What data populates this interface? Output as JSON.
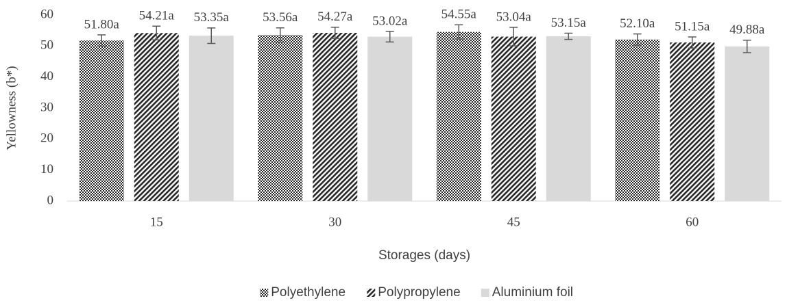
{
  "chart_data": {
    "type": "bar",
    "x_label": "Storages (days)",
    "y_label": "Yellowness (b*)",
    "categories": [
      "15",
      "30",
      "45",
      "60"
    ],
    "series": [
      {
        "name": "Polyethylene",
        "color": "#262626",
        "pattern": "checker",
        "values": [
          51.8,
          53.56,
          54.55,
          52.1
        ],
        "errors": [
          1.8,
          2.3,
          2.3,
          1.8
        ],
        "value_labels": [
          "51.80a",
          "53.56a",
          "54.55a",
          "52.10a"
        ]
      },
      {
        "name": "Polypropylene",
        "color": "#262626",
        "pattern": "diagonal",
        "values": [
          54.21,
          54.27,
          53.04,
          51.15
        ],
        "errors": [
          2.2,
          1.8,
          3.0,
          1.8
        ],
        "value_labels": [
          "54.21a",
          "54.27a",
          "53.04a",
          "51.15a"
        ]
      },
      {
        "name": "Aluminium foil",
        "color": "#d9d9d9",
        "pattern": "solid",
        "values": [
          53.35,
          53.02,
          53.15,
          49.88
        ],
        "errors": [
          2.5,
          1.7,
          1.0,
          2.0
        ],
        "value_labels": [
          "53.35a",
          "53.02a",
          "53.15a",
          "49.88a"
        ]
      }
    ],
    "ylim": [
      0,
      60
    ],
    "yticks": [
      0,
      10,
      20,
      30,
      40,
      50,
      60
    ],
    "grid": false,
    "legend": "bottom"
  }
}
